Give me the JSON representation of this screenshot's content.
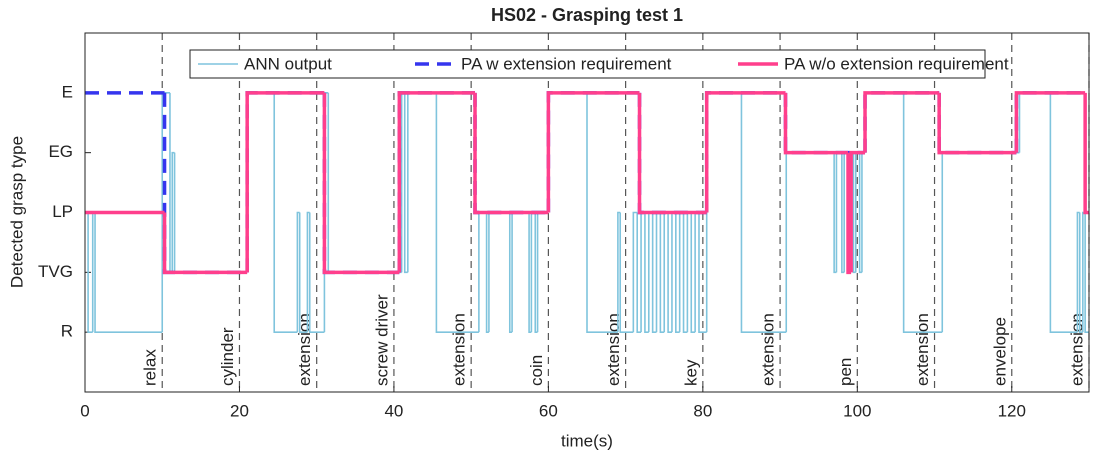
{
  "chart_data": {
    "type": "step",
    "title": "HS02 - Grasping test 1",
    "xlabel": "time(s)",
    "ylabel": "Detected grasp type",
    "xlim": [
      0,
      130
    ],
    "xticks": [
      0,
      20,
      40,
      60,
      80,
      100,
      120
    ],
    "ylim": [
      0,
      6
    ],
    "yticks": [
      {
        "value": 1,
        "label": "R"
      },
      {
        "value": 2,
        "label": "TVG"
      },
      {
        "value": 3,
        "label": "LP"
      },
      {
        "value": 4,
        "label": "EG"
      },
      {
        "value": 5,
        "label": "E"
      }
    ],
    "phase_boundaries": [
      10,
      20,
      30,
      40,
      50,
      60,
      70,
      80,
      90,
      100,
      110,
      120,
      130
    ],
    "phase_labels": [
      "relax",
      "cylinder",
      "extension",
      "screw driver",
      "extension",
      "coin",
      "extension",
      "key",
      "extension",
      "pen",
      "extension",
      "envelope",
      "extension"
    ],
    "legend": "top",
    "series": [
      {
        "name": "ANN output",
        "color": "#7fc4dd",
        "style": "solid",
        "x": [
          0,
          0.4,
          1,
          1.3,
          10,
          11,
          11.3,
          11.6,
          21,
          24.5,
          27.5,
          27.8,
          28.8,
          29.1,
          31,
          31.5,
          41,
          41.4,
          41.8,
          45.5,
          51,
          52,
          52.3,
          55,
          55.3,
          57.5,
          57.8,
          58.3,
          58.6,
          60,
          65,
          69,
          69.3,
          71,
          71.5,
          72,
          72.5,
          73,
          73.5,
          74,
          74.5,
          75,
          75.5,
          76,
          76.5,
          77,
          77.5,
          78,
          78.5,
          79,
          79.5,
          80.5,
          85,
          90.8,
          97,
          97.3,
          98,
          98.3,
          99.5,
          99.8,
          100.3,
          100.6,
          101,
          106,
          111,
          121,
          125,
          128.5,
          128.8,
          129.2,
          129.5,
          130
        ],
        "values": [
          3,
          1,
          3,
          1,
          5,
          2,
          4,
          2,
          5,
          1,
          3,
          1,
          3,
          1,
          5,
          2,
          5,
          2,
          5,
          1,
          3,
          1,
          3,
          1,
          3,
          1,
          3,
          1,
          3,
          5,
          1,
          3,
          1,
          3,
          1,
          3,
          1,
          3,
          1,
          3,
          1,
          3,
          1,
          3,
          1,
          3,
          1,
          3,
          1,
          3,
          1,
          5,
          1,
          4,
          2,
          4,
          2,
          4,
          2,
          4,
          2,
          4,
          5,
          1,
          4,
          5,
          1,
          3,
          1,
          3,
          1,
          1
        ]
      },
      {
        "name": "PA w extension requirement",
        "color": "#3535ee",
        "style": "dashed",
        "x": [
          0,
          10.3,
          21,
          31,
          40.7,
          50.5,
          60,
          71.8,
          80.5,
          90.7,
          101,
          110.6,
          120.6,
          130
        ],
        "values": [
          5,
          2,
          5,
          2,
          5,
          3,
          5,
          3,
          5,
          4,
          5,
          4,
          5,
          5
        ]
      },
      {
        "name": "PA w/o extension requirement",
        "color": "#ff3f8c",
        "style": "solid",
        "x": [
          0,
          10.3,
          21,
          31,
          40.7,
          50.5,
          60,
          71.8,
          80.5,
          90.7,
          98.8,
          99.2,
          101,
          110.6,
          120.6,
          129.5,
          130
        ],
        "values": [
          3,
          2,
          5,
          2,
          5,
          3,
          5,
          3,
          5,
          4,
          2,
          4,
          5,
          4,
          5,
          3,
          3
        ]
      }
    ]
  }
}
